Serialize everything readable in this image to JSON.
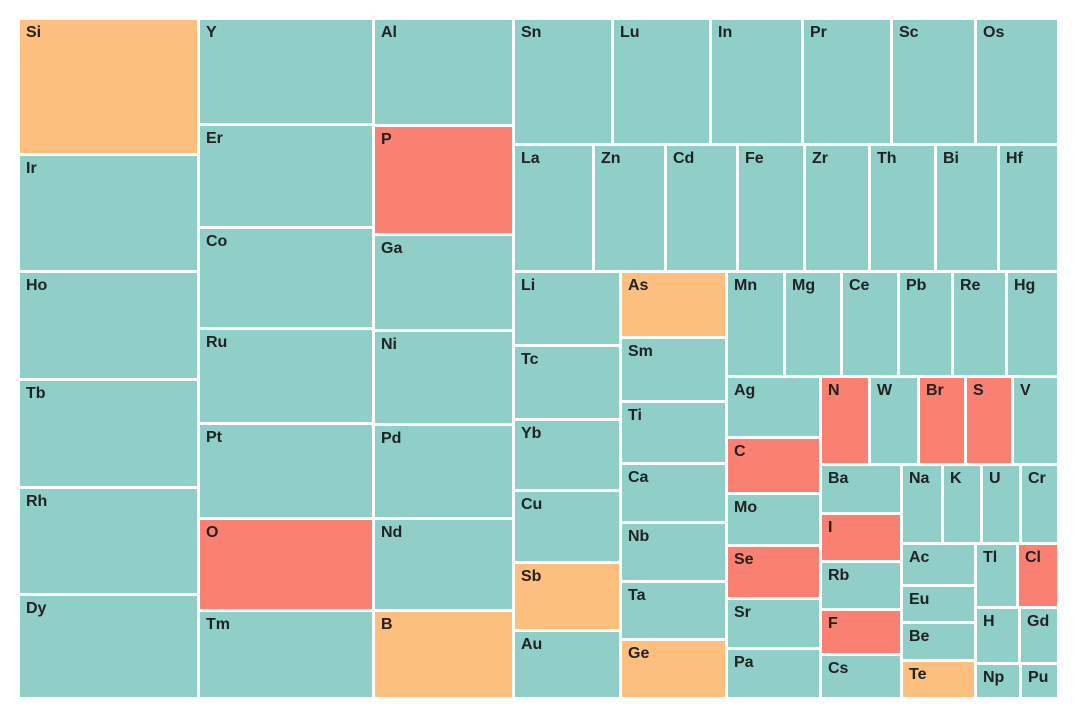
{
  "chart_data": {
    "type": "treemap",
    "title": "",
    "legend": "none",
    "colors": {
      "teal": "#8fcfc8",
      "orange": "#fdbf7e",
      "red": "#fa8072"
    },
    "cells": [
      {
        "label": "Si",
        "color": "orange"
      },
      {
        "label": "Ir",
        "color": "teal"
      },
      {
        "label": "Ho",
        "color": "teal"
      },
      {
        "label": "Tb",
        "color": "teal"
      },
      {
        "label": "Rh",
        "color": "teal"
      },
      {
        "label": "Dy",
        "color": "teal"
      },
      {
        "label": "Y",
        "color": "teal"
      },
      {
        "label": "Er",
        "color": "teal"
      },
      {
        "label": "Co",
        "color": "teal"
      },
      {
        "label": "Ru",
        "color": "teal"
      },
      {
        "label": "Pt",
        "color": "teal"
      },
      {
        "label": "O",
        "color": "red"
      },
      {
        "label": "Tm",
        "color": "teal"
      },
      {
        "label": "Al",
        "color": "teal"
      },
      {
        "label": "P",
        "color": "red"
      },
      {
        "label": "Ga",
        "color": "teal"
      },
      {
        "label": "Ni",
        "color": "teal"
      },
      {
        "label": "Pd",
        "color": "teal"
      },
      {
        "label": "Nd",
        "color": "teal"
      },
      {
        "label": "B",
        "color": "orange"
      },
      {
        "label": "Sn",
        "color": "teal"
      },
      {
        "label": "Lu",
        "color": "teal"
      },
      {
        "label": "In",
        "color": "teal"
      },
      {
        "label": "Pr",
        "color": "teal"
      },
      {
        "label": "Sc",
        "color": "teal"
      },
      {
        "label": "Os",
        "color": "teal"
      },
      {
        "label": "La",
        "color": "teal"
      },
      {
        "label": "Zn",
        "color": "teal"
      },
      {
        "label": "Cd",
        "color": "teal"
      },
      {
        "label": "Fe",
        "color": "teal"
      },
      {
        "label": "Zr",
        "color": "teal"
      },
      {
        "label": "Th",
        "color": "teal"
      },
      {
        "label": "Bi",
        "color": "teal"
      },
      {
        "label": "Hf",
        "color": "teal"
      },
      {
        "label": "Li",
        "color": "teal"
      },
      {
        "label": "Tc",
        "color": "teal"
      },
      {
        "label": "Yb",
        "color": "teal"
      },
      {
        "label": "Cu",
        "color": "teal"
      },
      {
        "label": "Sb",
        "color": "orange"
      },
      {
        "label": "Au",
        "color": "teal"
      },
      {
        "label": "As",
        "color": "orange"
      },
      {
        "label": "Sm",
        "color": "teal"
      },
      {
        "label": "Ti",
        "color": "teal"
      },
      {
        "label": "Ca",
        "color": "teal"
      },
      {
        "label": "Nb",
        "color": "teal"
      },
      {
        "label": "Ta",
        "color": "teal"
      },
      {
        "label": "Ge",
        "color": "orange"
      },
      {
        "label": "Mn",
        "color": "teal"
      },
      {
        "label": "Mg",
        "color": "teal"
      },
      {
        "label": "Ce",
        "color": "teal"
      },
      {
        "label": "Pb",
        "color": "teal"
      },
      {
        "label": "Re",
        "color": "teal"
      },
      {
        "label": "Hg",
        "color": "teal"
      },
      {
        "label": "Ag",
        "color": "teal"
      },
      {
        "label": "C",
        "color": "red"
      },
      {
        "label": "Mo",
        "color": "teal"
      },
      {
        "label": "Se",
        "color": "red"
      },
      {
        "label": "Sr",
        "color": "teal"
      },
      {
        "label": "Pa",
        "color": "teal"
      },
      {
        "label": "N",
        "color": "red"
      },
      {
        "label": "W",
        "color": "teal"
      },
      {
        "label": "Br",
        "color": "red"
      },
      {
        "label": "S",
        "color": "red"
      },
      {
        "label": "V",
        "color": "teal"
      },
      {
        "label": "Ba",
        "color": "teal"
      },
      {
        "label": "I",
        "color": "red"
      },
      {
        "label": "Rb",
        "color": "teal"
      },
      {
        "label": "F",
        "color": "red"
      },
      {
        "label": "Cs",
        "color": "teal"
      },
      {
        "label": "Na",
        "color": "teal"
      },
      {
        "label": "K",
        "color": "teal"
      },
      {
        "label": "U",
        "color": "teal"
      },
      {
        "label": "Cr",
        "color": "teal"
      },
      {
        "label": "Ac",
        "color": "teal"
      },
      {
        "label": "Eu",
        "color": "teal"
      },
      {
        "label": "Be",
        "color": "teal"
      },
      {
        "label": "Te",
        "color": "orange"
      },
      {
        "label": "Tl",
        "color": "teal"
      },
      {
        "label": "Cl",
        "color": "red"
      },
      {
        "label": "H",
        "color": "teal"
      },
      {
        "label": "Gd",
        "color": "teal"
      },
      {
        "label": "Np",
        "color": "teal"
      },
      {
        "label": "Pu",
        "color": "teal"
      }
    ]
  }
}
